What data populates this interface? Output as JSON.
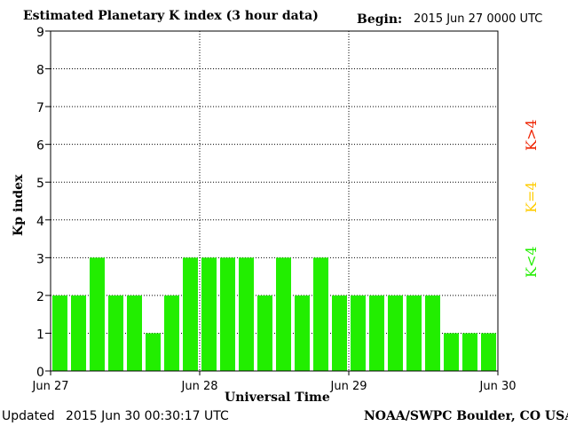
{
  "header": {
    "title": "Estimated Planetary K index (3 hour data)",
    "begin_label": "Begin:",
    "begin_value": "2015 Jun 27 0000 UTC"
  },
  "footer": {
    "updated_label": "Updated",
    "updated_value": "2015 Jun 30 00:30:17 UTC",
    "source": "NOAA/SWPC Boulder, CO USA"
  },
  "legend": {
    "low": "K<4",
    "equal": "K=4",
    "high": "K>4",
    "colors": {
      "low": "#22ee00",
      "equal": "#ffcc00",
      "high": "#ee2200"
    }
  },
  "chart_data": {
    "type": "bar",
    "title": "Estimated Planetary K index (3 hour data)",
    "xlabel": "Universal Time",
    "ylabel": "Kp index",
    "ylim": [
      0,
      9
    ],
    "yticks": [
      "0",
      "1",
      "2",
      "3",
      "4",
      "5",
      "6",
      "7",
      "8",
      "9"
    ],
    "xticks": [
      "Jun 27",
      "Jun 28",
      "Jun 29",
      "Jun 30"
    ],
    "categories": [
      "Jun 27 00",
      "Jun 27 03",
      "Jun 27 06",
      "Jun 27 09",
      "Jun 27 12",
      "Jun 27 15",
      "Jun 27 18",
      "Jun 27 21",
      "Jun 28 00",
      "Jun 28 03",
      "Jun 28 06",
      "Jun 28 09",
      "Jun 28 12",
      "Jun 28 15",
      "Jun 28 18",
      "Jun 28 21",
      "Jun 29 00",
      "Jun 29 03",
      "Jun 29 06",
      "Jun 29 09",
      "Jun 29 12",
      "Jun 29 15",
      "Jun 29 18",
      "Jun 29 21"
    ],
    "values": [
      2,
      2,
      3,
      2,
      2,
      1,
      2,
      3,
      3,
      3,
      3,
      2,
      3,
      2,
      3,
      2,
      2,
      2,
      2,
      2,
      2,
      1,
      1,
      1
    ],
    "bar_color": "#22ee00",
    "grid": "dotted"
  }
}
